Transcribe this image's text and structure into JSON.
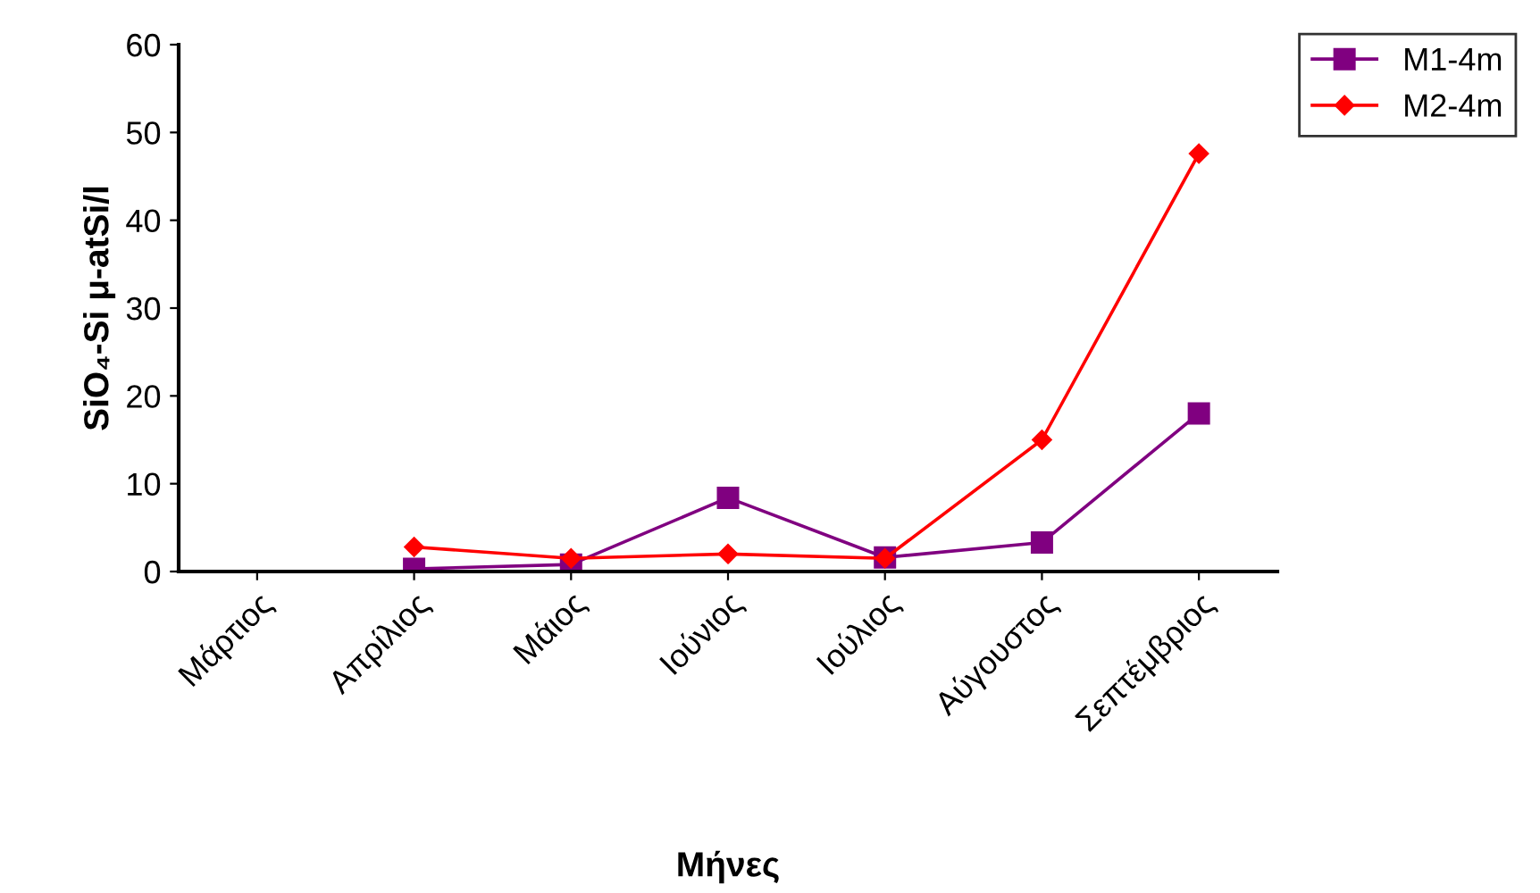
{
  "chart_data": {
    "type": "line",
    "xlabel": "Μήνες",
    "ylabel": "SiO₄-Si μ-atSi/l",
    "categories": [
      "Μάρτιος",
      "Απρίλιος",
      "Μάιος",
      "Ιούνιος",
      "Ιούλιος",
      "Αύγουστος",
      "Σεπτέμβριος"
    ],
    "series": [
      {
        "name": "M1-4m",
        "color": "#800080",
        "marker": "square",
        "values": [
          null,
          0.3,
          0.8,
          8.4,
          1.6,
          3.3,
          18
        ]
      },
      {
        "name": "M2-4m",
        "color": "#ff0000",
        "marker": "diamond",
        "values": [
          null,
          2.8,
          1.5,
          2.0,
          1.5,
          15,
          47.6
        ]
      }
    ],
    "ylim": [
      0,
      60
    ],
    "yticks": [
      0,
      10,
      20,
      30,
      40,
      50,
      60
    ],
    "grid": false,
    "legend": "top right"
  }
}
